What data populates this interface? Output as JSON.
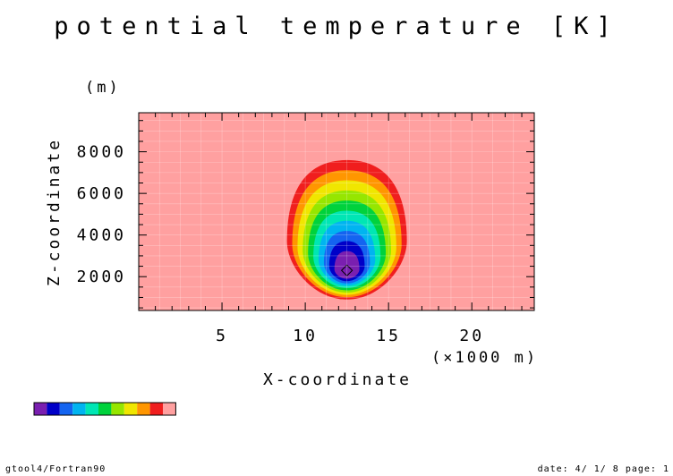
{
  "chart_data": {
    "type": "heatmap",
    "title": "potential temperature [K]",
    "xlabel": "X-coordinate",
    "x_unit": "(×1000 m)",
    "ylabel": "Z-coordinate",
    "y_unit": "(m)",
    "xlim": [
      0,
      23.75
    ],
    "ylim": [
      375,
      9875
    ],
    "x_ticks": [
      5,
      10,
      15,
      20
    ],
    "x_tick_labels": [
      "5",
      "10",
      "15",
      "20"
    ],
    "y_ticks": [
      2000,
      4000,
      6000,
      8000
    ],
    "y_tick_labels": [
      "2000",
      "4000",
      "6000",
      "8000"
    ],
    "grid": true,
    "field": {
      "type": "thermal-bubble",
      "center_x": 12.5,
      "center_z": 2200,
      "min_at": [
        12.5,
        2300
      ],
      "outer_extent_x": [
        8.6,
        15.8
      ],
      "outer_extent_z": [
        900,
        7600
      ]
    },
    "colorbar": {
      "n_levels": 11,
      "colors": [
        "#7a1fb0",
        "#0000c8",
        "#1464f0",
        "#00b4f0",
        "#00e6b4",
        "#00d23c",
        "#96e600",
        "#f0e600",
        "#ff9600",
        "#f01e1e",
        "#ffa0a0"
      ],
      "labels": []
    }
  },
  "footer": {
    "left": "gtool4/Fortran90",
    "right": "date: 4/ 1/ 8 page: 1"
  }
}
